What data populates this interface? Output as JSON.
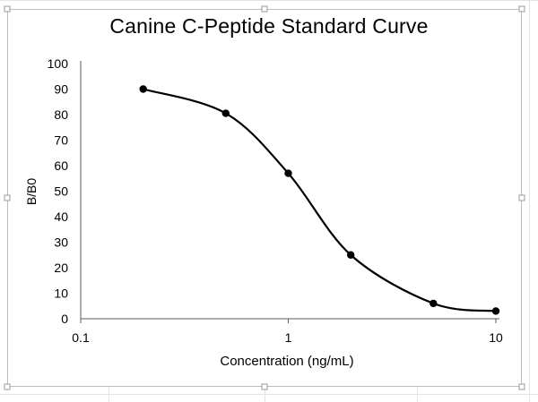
{
  "chart_data": {
    "type": "scatter",
    "title": "Canine C-Peptide Standard Curve",
    "xlabel": "Concentration (ng/mL)",
    "ylabel": "B/B0",
    "x_scale": "log",
    "xlim": [
      0.1,
      10
    ],
    "ylim": [
      0,
      100
    ],
    "x_ticks": [
      0.1,
      1,
      10
    ],
    "x_tick_labels": [
      "0.1",
      "1",
      "10"
    ],
    "y_ticks": [
      0,
      10,
      20,
      30,
      40,
      50,
      60,
      70,
      80,
      90,
      100
    ],
    "y_tick_labels": [
      "0",
      "10",
      "20",
      "30",
      "40",
      "50",
      "60",
      "70",
      "80",
      "90",
      "100"
    ],
    "grid": false,
    "smooth_line": true,
    "series": [
      {
        "color": "#000000",
        "x": [
          0.2,
          0.5,
          1,
          2,
          5,
          10
        ],
        "y": [
          90,
          80.5,
          57,
          25,
          6,
          3
        ]
      }
    ]
  }
}
